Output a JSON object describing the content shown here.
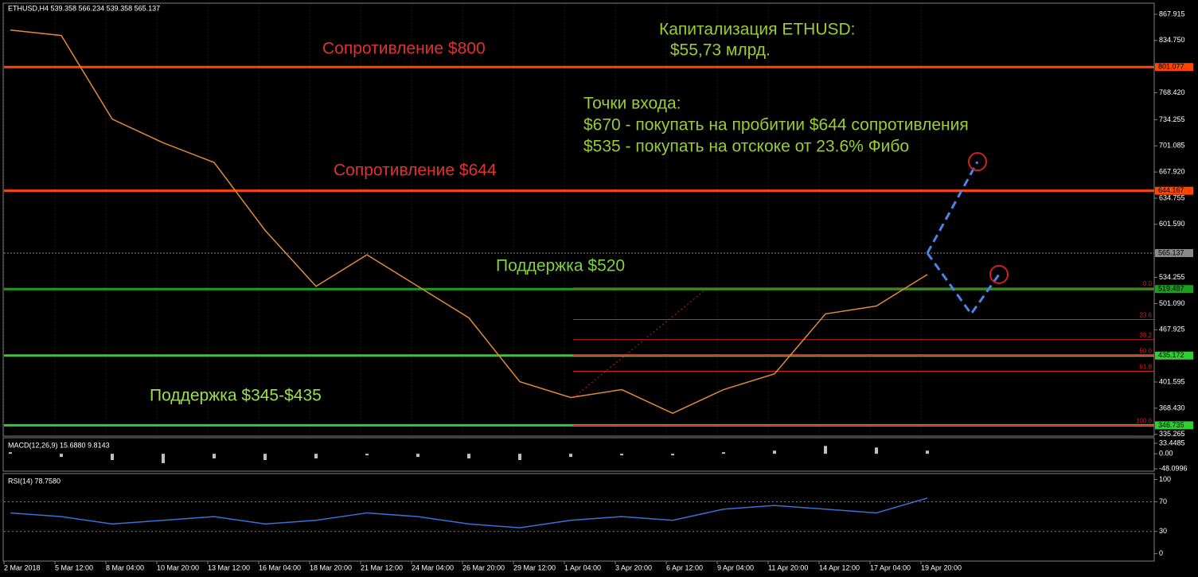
{
  "header": "ETHUSD,H4  539.358 566.234 539.358 565.137",
  "chart_data": [
    {
      "type": "line",
      "categories": [
        "2 Mar 2018",
        "5 Mar 12:00",
        "8 Mar 04:00",
        "10 Mar 20:00",
        "13 Mar 12:00",
        "16 Mar 04:00",
        "18 Mar 20:00",
        "21 Mar 12:00",
        "24 Mar 04:00",
        "26 Mar 20:00",
        "29 Mar 12:00",
        "1 Apr 04:00",
        "3 Apr 20:00",
        "6 Apr 12:00",
        "9 Apr 04:00",
        "11 Apr 20:00",
        "14 Apr 12:00",
        "17 Apr 04:00",
        "19 Apr 20:00"
      ],
      "series": [
        {
          "name": "ETHUSD",
          "color": "#e08a3a",
          "values": [
            848,
            841,
            735,
            705,
            680,
            594,
            523,
            563,
            523,
            483,
            402,
            382,
            392,
            362,
            392,
            412,
            488,
            498,
            538
          ]
        }
      ],
      "ylim": [
        333,
        881
      ],
      "yticks": [
        867.915,
        {
          "value": 834.75,
          "label": "834.750"
        },
        {
          "value": 768.42,
          "label": "768.420"
        },
        734.255,
        701.085,
        {
          "value": 667.92,
          "label": "667.920"
        },
        634.755,
        {
          "value": 601.59,
          "label": "601.590"
        },
        534.255,
        {
          "value": 501.09,
          "label": "501.090"
        },
        467.925,
        401.595,
        {
          "value": 368.43,
          "label": "368.430"
        },
        335.265
      ],
      "levels": [
        {
          "value": 801.077,
          "color": "#ff4500",
          "name": "Сопротивление $800"
        },
        {
          "value": 644.167,
          "color": "#ff4500",
          "name": "Сопротивление $644"
        },
        {
          "value": 565.137,
          "color": "#8a8a8a"
        },
        {
          "value": 519.487,
          "color": "#1e9e1e",
          "name": "Поддержка $520"
        },
        {
          "value": 435.172,
          "color": "#32cd32"
        },
        {
          "value": 346.735,
          "color": "#32cd32",
          "name": "Поддержка $345-$435"
        }
      ],
      "fib": {
        "labels": [
          "0.0",
          "23.6",
          "38.2",
          "50.0",
          "61.8",
          "100.0"
        ],
        "prices": [
          521,
          480.8,
          455.4,
          435.6,
          415.2,
          346.735
        ],
        "color": "#d22020"
      },
      "forecast": {
        "color": "#4a86e8",
        "up": [
          565.137,
          681
        ],
        "down": [
          565.137,
          488,
          538
        ]
      },
      "annotations": [
        "Капитализация ETHUSD:",
        " $55,73 млрд.",
        "Точки входа:",
        "$670 - покупать на пробитии $644 сопротивления",
        "$535 - покупать на отскоке от 23.6% Фибо"
      ]
    },
    {
      "type": "bar",
      "title": "MACD(12,26,9) 15.6880 9.8143",
      "values": [
        5,
        -10,
        -20,
        -30,
        -15,
        -20,
        -15,
        -5,
        -10,
        -15,
        -20,
        -10,
        -5,
        -5,
        5,
        10,
        25,
        20,
        10
      ],
      "color": "#c0c0c0",
      "ylim": [
        -53,
        48.7
      ],
      "yticks": [
        33.4485,
        {
          "value": 0,
          "label": "0.00"
        },
        -48.0996
      ]
    },
    {
      "type": "line",
      "title": "RSI(14) 78.7580",
      "series": [
        {
          "name": "RSI",
          "color": "#3a6fd8",
          "values": [
            55,
            50,
            40,
            45,
            50,
            40,
            45,
            55,
            50,
            40,
            35,
            45,
            50,
            45,
            60,
            65,
            60,
            55,
            75
          ]
        }
      ],
      "ylim": [
        -10,
        107
      ],
      "yticks": [
        100,
        70,
        30,
        0
      ],
      "grid": [
        70,
        30
      ]
    }
  ]
}
